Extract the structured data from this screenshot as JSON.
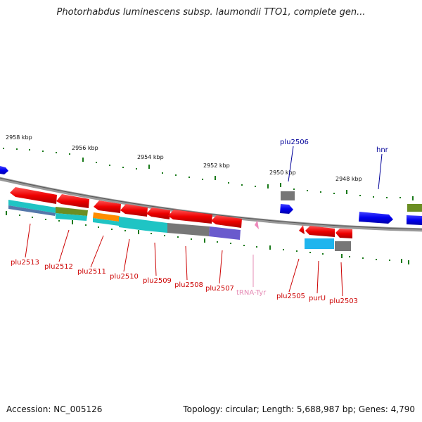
{
  "title": "Photorhabdus luminescens subsp. laumondii TTO1, complete gen...",
  "footer": {
    "accession": "Accession: NC_005126",
    "topology": "Topology: circular; Length: 5,688,987 bp; Genes: 4,790"
  },
  "scale_labels": [
    "2958 kbp",
    "2956 kbp",
    "2954 kbp",
    "2952 kbp",
    "2950 kbp",
    "2948 kbp"
  ],
  "genes": [
    {
      "name": "plu2513",
      "color": "#cc0000"
    },
    {
      "name": "plu2512",
      "color": "#cc0000"
    },
    {
      "name": "plu2511",
      "color": "#cc0000"
    },
    {
      "name": "plu2510",
      "color": "#cc0000"
    },
    {
      "name": "plu2509",
      "color": "#cc0000"
    },
    {
      "name": "plu2508",
      "color": "#cc0000"
    },
    {
      "name": "plu2507",
      "color": "#cc0000"
    },
    {
      "name": "tRNA-Tyr",
      "color": "#e58cb5"
    },
    {
      "name": "plu2505",
      "color": "#cc0000"
    },
    {
      "name": "purU",
      "color": "#cc0000"
    },
    {
      "name": "plu2503",
      "color": "#cc0000"
    },
    {
      "name": "plu2506",
      "color": "#000099"
    },
    {
      "name": "hnr",
      "color": "#000099"
    }
  ],
  "colors": {
    "forward_gene": "#0000ee",
    "reverse_gene": "#ee0000",
    "backbone": "#888888",
    "tick": "#1a7a1a",
    "trna": "#ee88bb"
  }
}
